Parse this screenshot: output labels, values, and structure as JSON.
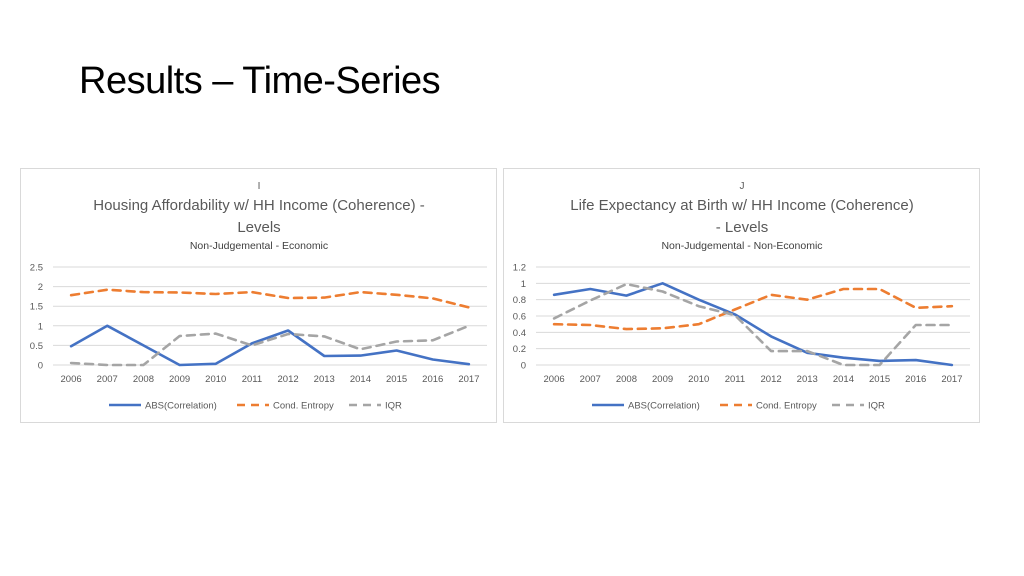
{
  "slide": {
    "title": "Results – Time-Series"
  },
  "chart_data": [
    {
      "type": "line",
      "panel_letter": "I",
      "title_lines": [
        "Housing Affordability w/ HH Income (Coherence) -",
        "Levels"
      ],
      "subtitle": "Non-Judgemental - Economic",
      "x": [
        "2006",
        "2007",
        "2008",
        "2009",
        "2010",
        "2011",
        "2012",
        "2013",
        "2014",
        "2015",
        "2016",
        "2017"
      ],
      "y_ticks": [
        "0",
        "0.5",
        "1",
        "1.5",
        "2",
        "2.5"
      ],
      "ylim": [
        0,
        2.5
      ],
      "grid": true,
      "legend_position": "bottom",
      "series": [
        {
          "name": "ABS(Correlation)",
          "color": "#4472c4",
          "dash": "solid",
          "values": [
            0.48,
            1.0,
            0.5,
            0.0,
            0.03,
            0.55,
            0.88,
            0.23,
            0.24,
            0.37,
            0.14,
            0.02
          ]
        },
        {
          "name": "Cond. Entropy",
          "color": "#ed7d31",
          "dash": "dash",
          "values": [
            1.78,
            1.92,
            1.86,
            1.85,
            1.81,
            1.86,
            1.71,
            1.72,
            1.86,
            1.79,
            1.7,
            1.47
          ]
        },
        {
          "name": "IQR",
          "color": "#a5a5a5",
          "dash": "dash",
          "values": [
            0.05,
            0.0,
            0.0,
            0.74,
            0.8,
            0.5,
            0.79,
            0.73,
            0.4,
            0.6,
            0.63,
            1.0
          ]
        }
      ]
    },
    {
      "type": "line",
      "panel_letter": "J",
      "title_lines": [
        "Life Expectancy at Birth w/ HH Income (Coherence)",
        "- Levels"
      ],
      "subtitle": "Non-Judgemental - Non-Economic",
      "x": [
        "2006",
        "2007",
        "2008",
        "2009",
        "2010",
        "2011",
        "2012",
        "2013",
        "2014",
        "2015",
        "2016",
        "2017"
      ],
      "y_ticks": [
        "0",
        "0.2",
        "0.4",
        "0.6",
        "0.8",
        "1",
        "1.2"
      ],
      "ylim": [
        0,
        1.2
      ],
      "grid": true,
      "legend_position": "bottom",
      "series": [
        {
          "name": "ABS(Correlation)",
          "color": "#4472c4",
          "dash": "solid",
          "values": [
            0.86,
            0.93,
            0.85,
            1.0,
            0.8,
            0.62,
            0.35,
            0.15,
            0.09,
            0.05,
            0.06,
            0.0
          ]
        },
        {
          "name": "Cond. Entropy",
          "color": "#ed7d31",
          "dash": "dash",
          "values": [
            0.5,
            0.49,
            0.44,
            0.45,
            0.5,
            0.68,
            0.86,
            0.8,
            0.93,
            0.93,
            0.7,
            0.72
          ]
        },
        {
          "name": "IQR",
          "color": "#a5a5a5",
          "dash": "dash",
          "values": [
            0.57,
            0.79,
            0.99,
            0.9,
            0.72,
            0.61,
            0.17,
            0.17,
            0.0,
            0.0,
            0.49,
            0.49
          ]
        }
      ]
    }
  ]
}
